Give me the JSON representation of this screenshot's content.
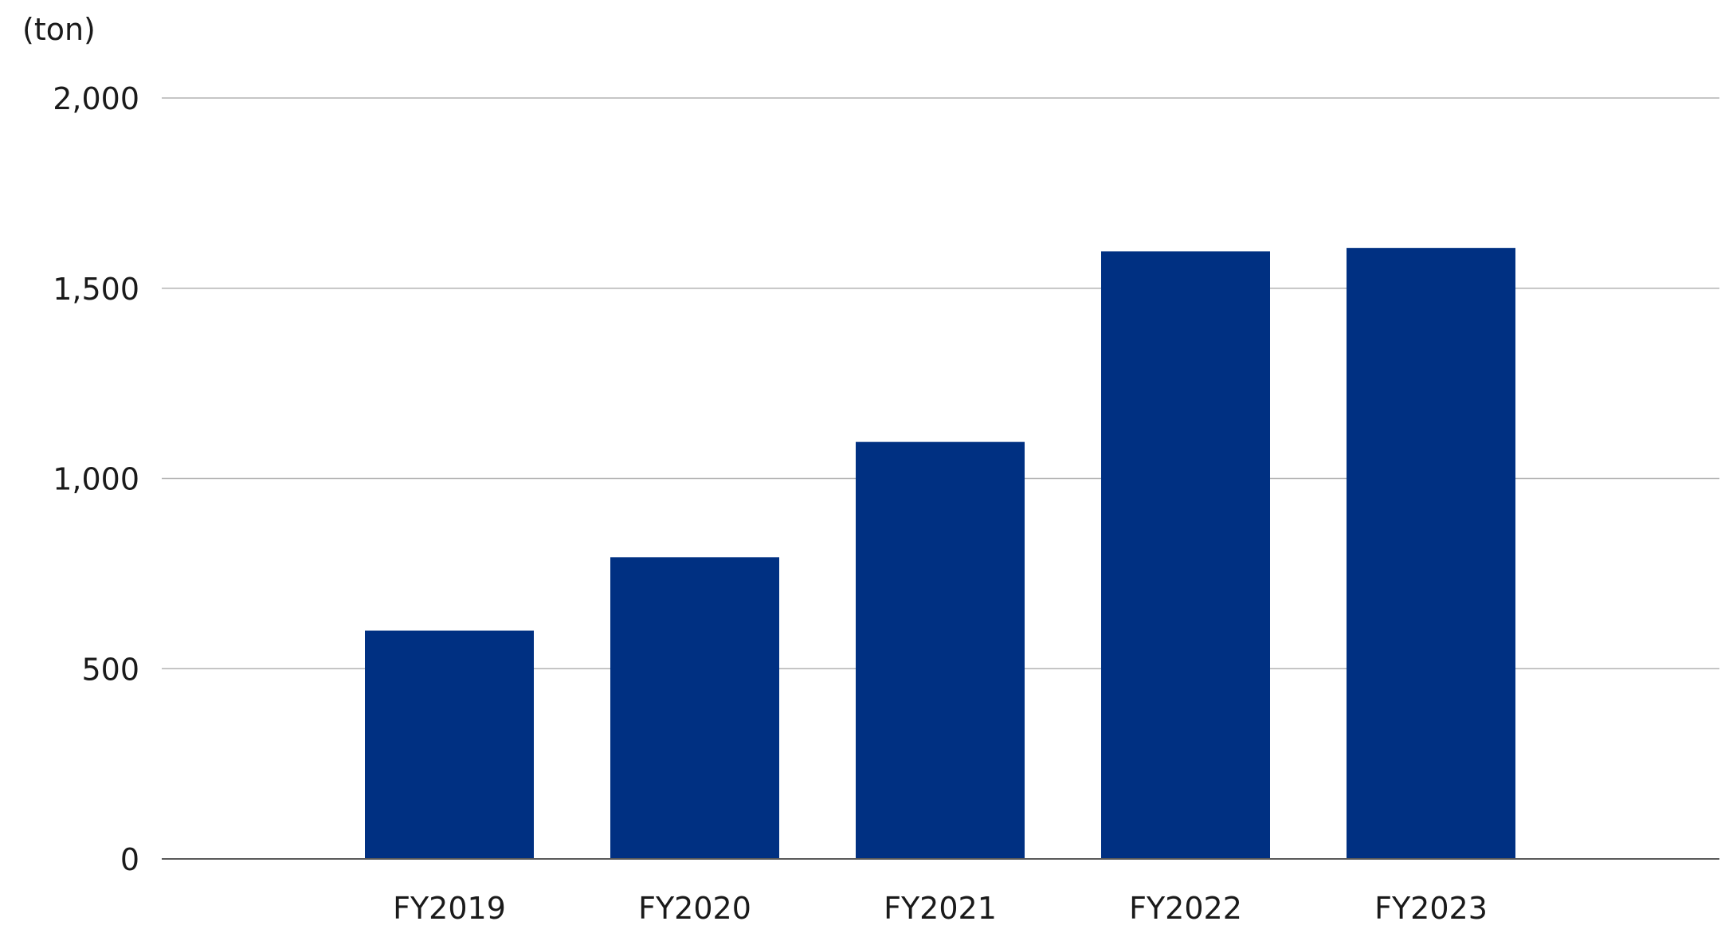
{
  "chart_data": {
    "type": "bar",
    "unit_label": "(ton)",
    "categories": [
      "FY2019",
      "FY2020",
      "FY2021",
      "FY2022",
      "FY2023"
    ],
    "values": [
      600,
      793,
      1096,
      1597,
      1606
    ],
    "ylim": [
      0,
      2000
    ],
    "yticks": [
      0,
      500,
      1000,
      1500,
      2000
    ],
    "ytick_labels": [
      "0",
      "500",
      "1,000",
      "1,500",
      "2,000"
    ],
    "grid": true,
    "bar_color": "#003082",
    "grid_color": "#b3b3b3",
    "axis_color": "#595959"
  }
}
